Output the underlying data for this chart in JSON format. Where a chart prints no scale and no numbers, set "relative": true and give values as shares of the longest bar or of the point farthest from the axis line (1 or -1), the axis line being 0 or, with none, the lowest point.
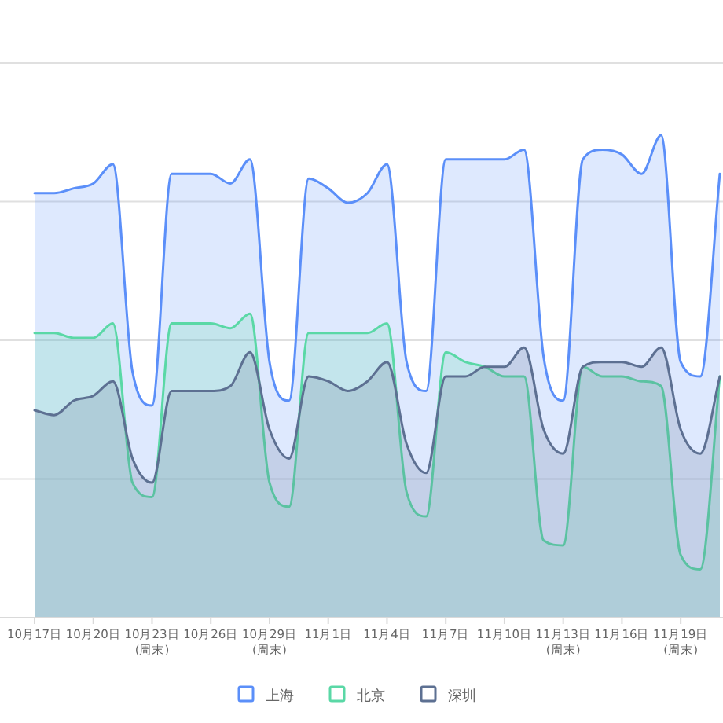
{
  "chart_data": {
    "type": "area",
    "relative": true,
    "grid": "y",
    "legend": "bottom",
    "marker": "none",
    "line_style": "solid",
    "categories": [
      "10月17日",
      null,
      null,
      "10月20日",
      null,
      null,
      "10月23日\n(周末)",
      null,
      null,
      "10月26日",
      null,
      null,
      "10月29日\n(周末)",
      null,
      null,
      "11月1日",
      null,
      null,
      "11月4日",
      null,
      null,
      "11月7日",
      null,
      null,
      "11月10日",
      null,
      null,
      "11月13日\n(周末)",
      null,
      null,
      "11月16日",
      null,
      null,
      "11月19日\n(周末)",
      null,
      null
    ],
    "series": [
      {
        "name": "上海",
        "color": "#5b8ff9",
        "values": [
          0.88,
          0.88,
          0.89,
          0.9,
          0.94,
          0.51,
          0.44,
          0.92,
          0.92,
          0.92,
          0.9,
          0.95,
          0.53,
          0.45,
          0.91,
          0.89,
          0.86,
          0.88,
          0.94,
          0.53,
          0.47,
          0.95,
          0.95,
          0.95,
          0.95,
          0.97,
          0.54,
          0.45,
          0.95,
          0.97,
          0.96,
          0.92,
          1.0,
          0.53,
          0.5,
          0.92
        ]
      },
      {
        "name": "北京",
        "color": "#5ad8a6",
        "values": [
          0.59,
          0.59,
          0.58,
          0.58,
          0.61,
          0.28,
          0.25,
          0.61,
          0.61,
          0.61,
          0.6,
          0.63,
          0.28,
          0.23,
          0.59,
          0.59,
          0.59,
          0.59,
          0.61,
          0.26,
          0.21,
          0.55,
          0.53,
          0.52,
          0.5,
          0.5,
          0.16,
          0.15,
          0.52,
          0.5,
          0.5,
          0.49,
          0.48,
          0.13,
          0.1,
          0.5
        ]
      },
      {
        "name": "深圳",
        "color": "#5d7092",
        "values": [
          0.43,
          0.42,
          0.45,
          0.46,
          0.49,
          0.33,
          0.28,
          0.47,
          0.47,
          0.47,
          0.48,
          0.55,
          0.39,
          0.33,
          0.5,
          0.49,
          0.47,
          0.49,
          0.53,
          0.36,
          0.3,
          0.5,
          0.5,
          0.52,
          0.52,
          0.56,
          0.39,
          0.34,
          0.52,
          0.53,
          0.53,
          0.52,
          0.56,
          0.39,
          0.34,
          0.5
        ]
      }
    ]
  }
}
